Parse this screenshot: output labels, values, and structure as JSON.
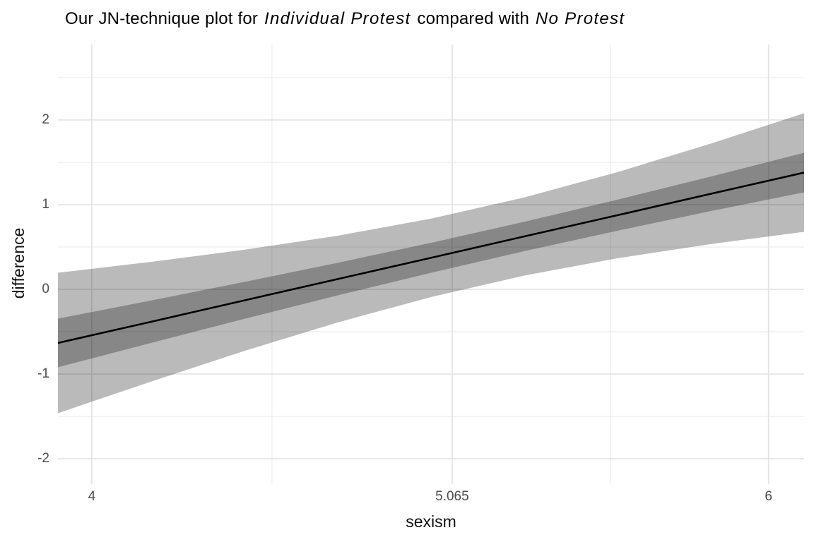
{
  "colors": {
    "background": "#ffffff",
    "grid_major": "#e4e4e4",
    "grid_minor": "#ececec",
    "ribbon_color": "#000000",
    "ribbon_opacity": 0.27,
    "outer_band_rendered": "#bababa",
    "inner_band_rendered": "#878787",
    "line": "#000000",
    "tick_text": "#4d4d4d",
    "title_text": "#000000"
  },
  "chart_data": {
    "type": "line",
    "title": "Our JN-technique plot for Individual Protest compared with No Protest",
    "title_segments": [
      {
        "text": "Our JN-technique plot for ",
        "italic": false
      },
      {
        "text": "Individual Protest",
        "italic": true
      },
      {
        "text": " compared with ",
        "italic": false
      },
      {
        "text": "No Protest",
        "italic": true
      }
    ],
    "xlabel": "sexism",
    "ylabel": "difference",
    "x_domain": [
      3.9,
      6.105
    ],
    "y_domain": [
      -2.3,
      2.892
    ],
    "grid": true,
    "legend": "none",
    "x_ticks": [
      {
        "value": 4,
        "label": "4"
      },
      {
        "value": 5.065,
        "label": "5.065"
      },
      {
        "value": 6,
        "label": "6"
      }
    ],
    "x_minor": [
      4.5325,
      5.5325
    ],
    "y_ticks": [
      {
        "value": -2,
        "label": "-2"
      },
      {
        "value": -1,
        "label": "-1"
      },
      {
        "value": 0,
        "label": "0"
      },
      {
        "value": 1,
        "label": "1"
      },
      {
        "value": 2,
        "label": "2"
      }
    ],
    "y_minor": [
      -1.5,
      -0.5,
      0.5,
      1.5,
      2.5
    ],
    "series": {
      "x": [
        3.9,
        4.176,
        4.451,
        4.727,
        5.003,
        5.278,
        5.554,
        5.829,
        6.105
      ],
      "difference": [
        -0.633,
        -0.382,
        -0.13,
        0.122,
        0.373,
        0.625,
        0.876,
        1.128,
        1.379
      ],
      "inner_band_low": [
        -0.92,
        -0.632,
        -0.348,
        -0.071,
        0.196,
        0.451,
        0.693,
        0.924,
        1.146
      ],
      "inner_band_high": [
        -0.346,
        -0.131,
        0.088,
        0.314,
        0.55,
        0.798,
        1.06,
        1.332,
        1.613
      ],
      "outer_band_low": [
        -1.462,
        -1.088,
        -0.727,
        -0.39,
        -0.09,
        0.163,
        0.368,
        0.535,
        0.679
      ],
      "outer_band_high": [
        0.196,
        0.325,
        0.468,
        0.634,
        0.836,
        1.086,
        1.385,
        1.721,
        2.08
      ]
    }
  }
}
